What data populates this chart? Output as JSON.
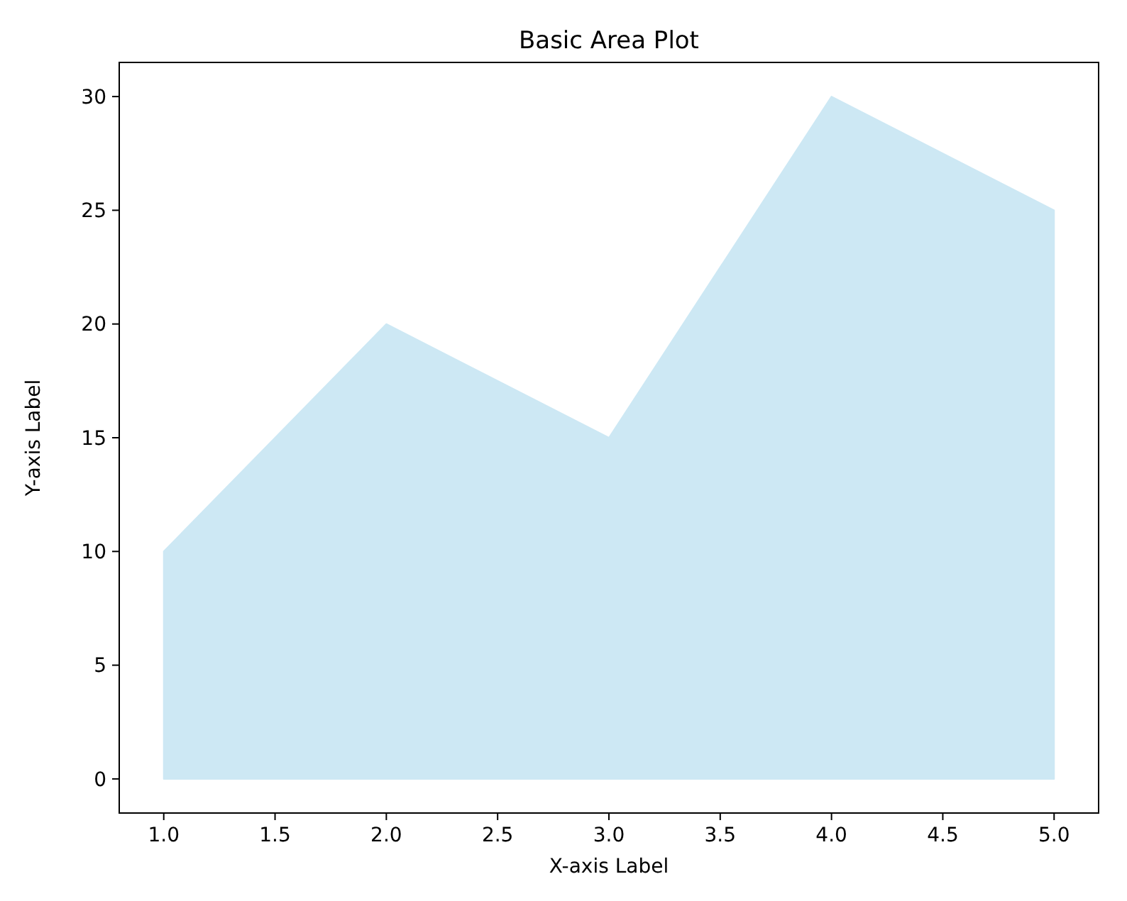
{
  "chart_data": {
    "type": "area",
    "title": "Basic Area Plot",
    "xlabel": "X-axis Label",
    "ylabel": "Y-axis Label",
    "x": [
      1,
      2,
      3,
      4,
      5
    ],
    "series": [
      {
        "color": "#cde8f4",
        "values": [
          10,
          20,
          15,
          30,
          25
        ]
      }
    ],
    "xlim": [
      0.8,
      5.2
    ],
    "xticks": [
      {
        "value": 1,
        "label": "1.0"
      },
      {
        "value": 1.5,
        "label": "1.5"
      },
      {
        "value": 2,
        "label": "2.0"
      },
      {
        "value": 2.5,
        "label": "2.5"
      },
      {
        "value": 3,
        "label": "3.0"
      },
      {
        "value": 3.5,
        "label": "3.5"
      },
      {
        "value": 4,
        "label": "4.0"
      },
      {
        "value": 4.5,
        "label": "4.5"
      },
      {
        "value": 5,
        "label": "5.0"
      }
    ],
    "ylim": [
      -1.5,
      31.5
    ],
    "yticks": [
      0,
      5,
      10,
      15,
      20,
      25,
      30
    ],
    "grid": false
  }
}
